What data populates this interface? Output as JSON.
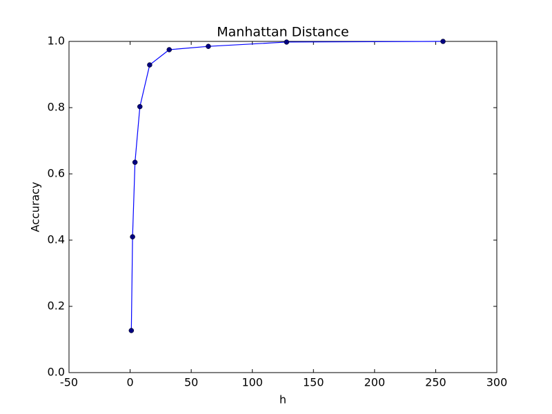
{
  "chart_data": {
    "type": "line",
    "title": "Manhattan Distance",
    "xlabel": "h",
    "ylabel": "Accuracy",
    "x": [
      1,
      2,
      4,
      8,
      16,
      32,
      64,
      128,
      256
    ],
    "series": [
      {
        "color": "#0000ff",
        "marker_color": "#000080",
        "values": [
          0.127,
          0.41,
          0.635,
          0.803,
          0.929,
          0.975,
          0.985,
          0.998,
          1.0
        ]
      }
    ],
    "xlim": [
      -50,
      300
    ],
    "xticks": [
      -50,
      0,
      50,
      100,
      150,
      200,
      250,
      300
    ],
    "ylim": [
      0,
      1
    ],
    "yticks": [
      {
        "value": 0,
        "label": "0.0"
      },
      0.2,
      0.4,
      0.6,
      0.8,
      {
        "value": 1,
        "label": "1.0"
      }
    ],
    "grid": false
  }
}
